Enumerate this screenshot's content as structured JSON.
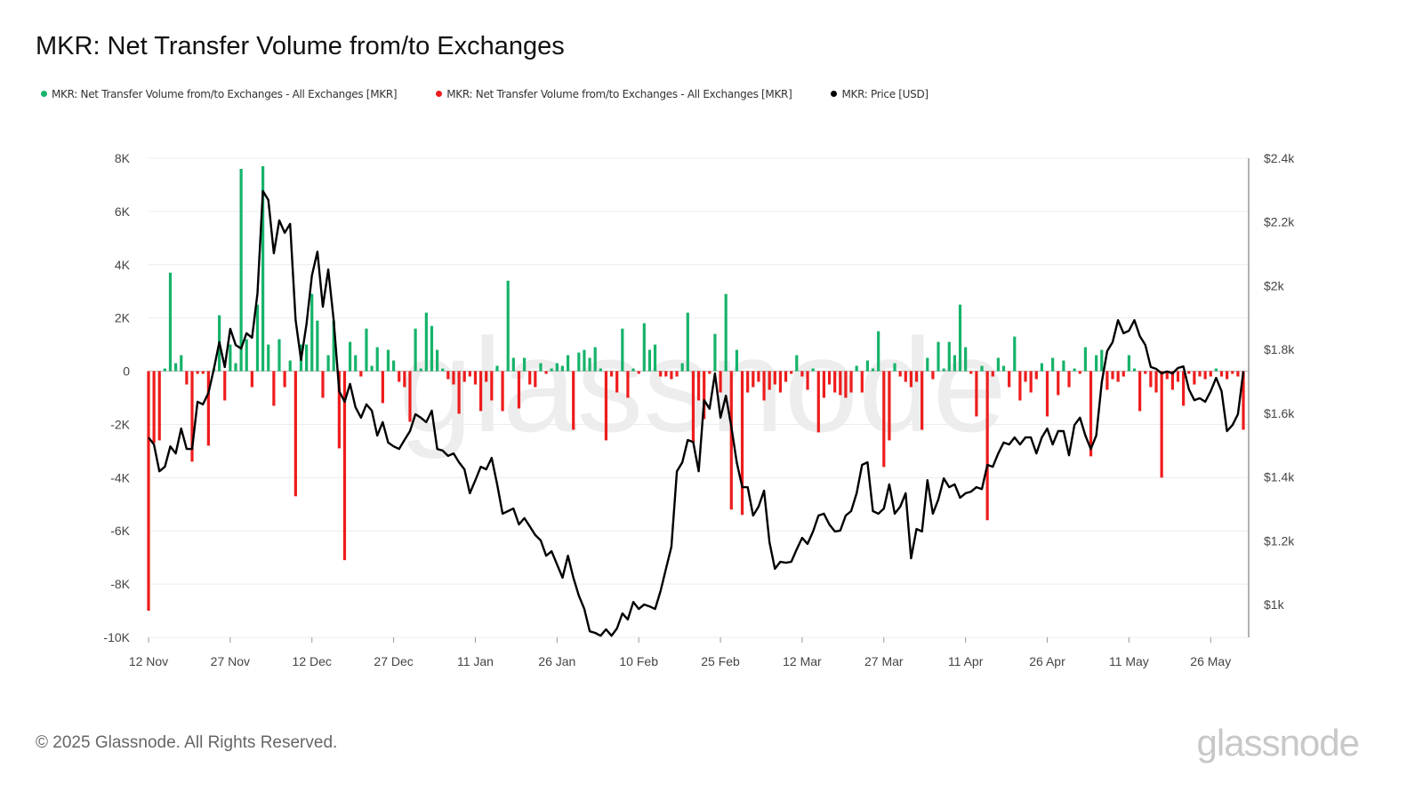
{
  "chart_data": {
    "type": "bar",
    "title": "MKR: Net Transfer Volume from/to Exchanges",
    "legend": [
      {
        "label": "MKR: Net Transfer Volume from/to Exchanges - All Exchanges [MKR]",
        "color": "#16b36b"
      },
      {
        "label": "MKR: Net Transfer Volume from/to Exchanges - All Exchanges [MKR]",
        "color": "#ee1c1c"
      },
      {
        "label": "MKR: Price [USD]",
        "color": "#000000"
      }
    ],
    "legend_position": "top-left",
    "x_ticks": [
      "12 Nov",
      "27 Nov",
      "12 Dec",
      "27 Dec",
      "11 Jan",
      "26 Jan",
      "10 Feb",
      "25 Feb",
      "12 Mar",
      "27 Mar",
      "11 Apr",
      "26 Apr",
      "11 May",
      "26 May"
    ],
    "x_tick_interval_days": 15,
    "y_left": {
      "ticks": [
        "8K",
        "6K",
        "4K",
        "2K",
        "0",
        "-2K",
        "-4K",
        "-6K",
        "-8K",
        "-10K"
      ],
      "range": [
        -10000,
        8000
      ],
      "unit": "MKR"
    },
    "y_right": {
      "ticks": [
        "$2.4k",
        "$2.2k",
        "$2k",
        "$1.8k",
        "$1.6k",
        "$1.4k",
        "$1.2k",
        "$1k"
      ],
      "range": [
        897,
        2400
      ],
      "unit": "USD"
    },
    "grid": true,
    "series": [
      {
        "name": "Net Transfer Volume (K MKR)",
        "type": "bar",
        "values": [
          -9.0,
          -2.7,
          -2.6,
          0.1,
          3.7,
          0.3,
          0.6,
          -0.5,
          -3.4,
          -0.1,
          -0.1,
          -2.8,
          0.1,
          2.1,
          -1.1,
          1.0,
          0.3,
          7.6,
          1.2,
          -0.6,
          2.5,
          7.7,
          1.0,
          -1.3,
          1.2,
          -0.6,
          0.4,
          -4.7,
          1.0,
          1.0,
          2.9,
          1.9,
          -1.0,
          0.6,
          1.9,
          -2.9,
          -7.1,
          1.1,
          0.6,
          -0.2,
          1.6,
          0.2,
          0.9,
          -1.2,
          0.8,
          0.4,
          -0.4,
          -0.6,
          -1.9,
          1.6,
          0.1,
          2.2,
          1.7,
          0.8,
          0.1,
          -0.3,
          -0.5,
          -1.6,
          -0.4,
          -0.2,
          -0.5,
          -1.5,
          -0.4,
          -1.1,
          0.2,
          -1.5,
          3.4,
          0.5,
          -1.4,
          0.5,
          -0.5,
          -0.6,
          0.3,
          -0.1,
          0.1,
          0.3,
          0.2,
          0.6,
          -2.2,
          0.7,
          0.8,
          0.5,
          0.9,
          0.1,
          -2.6,
          -0.2,
          -0.8,
          1.6,
          -1.0,
          0.1,
          -0.1,
          1.8,
          0.8,
          1.0,
          -0.2,
          -0.2,
          -0.3,
          -0.2,
          0.3,
          2.2,
          -2.7,
          -1.1,
          -1.8,
          -0.1,
          1.4,
          -0.8,
          2.9,
          -5.2,
          0.8,
          -5.4,
          -0.8,
          -0.6,
          -0.4,
          -1.1,
          -0.7,
          -0.5,
          -0.8,
          -0.4,
          -0.1,
          0.6,
          -0.2,
          -0.7,
          0.1,
          -2.3,
          -1.0,
          -0.5,
          -0.8,
          -0.9,
          -1.0,
          -0.8,
          0.2,
          -0.8,
          0.4,
          0.1,
          1.5,
          -3.6,
          -2.6,
          0.3,
          -0.2,
          -0.4,
          -0.6,
          -0.4,
          -2.2,
          0.5,
          -0.3,
          1.1,
          0.1,
          1.1,
          0.6,
          2.5,
          0.9,
          -0.1,
          -1.7,
          0.2,
          -5.6,
          -0.2,
          0.5,
          0.2,
          -0.6,
          1.3,
          -1.1,
          -0.4,
          -0.8,
          -0.3,
          0.3,
          -1.7,
          0.5,
          -0.9,
          0.4,
          -0.6,
          0.1,
          -0.1,
          0.9,
          -3.2,
          0.6,
          0.8,
          -0.7,
          -0.3,
          -0.4,
          -0.2,
          0.6,
          0.1,
          -1.5,
          -0.1,
          -0.6,
          -0.8,
          -4.0,
          -0.3,
          -0.7,
          -0.4,
          -1.3,
          -0.1,
          -0.5,
          -0.2,
          -0.3,
          -0.2,
          0.1,
          -0.2,
          -0.3,
          -0.1,
          -0.2,
          -2.2
        ]
      },
      {
        "name": "MKR: Price [USD]",
        "type": "line",
        "values": [
          1524,
          1502,
          1418,
          1432,
          1496,
          1474,
          1552,
          1488,
          1488,
          1636,
          1628,
          1664,
          1739,
          1823,
          1745,
          1865,
          1814,
          1803,
          1851,
          1837,
          1976,
          2297,
          2269,
          2102,
          2205,
          2166,
          2194,
          1892,
          1767,
          1879,
          2032,
          2107,
          1934,
          2051,
          1892,
          1669,
          1636,
          1692,
          1619,
          1586,
          1628,
          1608,
          1530,
          1572,
          1508,
          1496,
          1488,
          1516,
          1544,
          1597,
          1586,
          1572,
          1608,
          1488,
          1483,
          1466,
          1474,
          1446,
          1424,
          1349,
          1390,
          1432,
          1424,
          1460,
          1377,
          1285,
          1293,
          1301,
          1251,
          1271,
          1245,
          1218,
          1201,
          1153,
          1167,
          1126,
          1084,
          1153,
          1084,
          1028,
          986,
          916,
          911,
          902,
          922,
          902,
          925,
          972,
          953,
          1008,
          986,
          1000,
          994,
          986,
          1042,
          1112,
          1181,
          1418,
          1446,
          1516,
          1510,
          1418,
          1641,
          1614,
          1725,
          1586,
          1655,
          1558,
          1446,
          1368,
          1368,
          1279,
          1307,
          1357,
          1195,
          1112,
          1134,
          1131,
          1134,
          1173,
          1209,
          1190,
          1229,
          1279,
          1285,
          1251,
          1229,
          1232,
          1279,
          1293,
          1349,
          1438,
          1446,
          1293,
          1285,
          1301,
          1377,
          1285,
          1307,
          1349,
          1145,
          1237,
          1229,
          1390,
          1285,
          1329,
          1396,
          1368,
          1377,
          1335,
          1349,
          1354,
          1368,
          1362,
          1438,
          1432,
          1474,
          1508,
          1502,
          1524,
          1502,
          1524,
          1524,
          1474,
          1524,
          1552,
          1502,
          1544,
          1544,
          1468,
          1563,
          1586,
          1530,
          1488,
          1530,
          1697,
          1795,
          1823,
          1892,
          1851,
          1859,
          1892,
          1842,
          1814,
          1745,
          1739,
          1725,
          1731,
          1725,
          1742,
          1747,
          1675,
          1641,
          1647,
          1636,
          1669,
          1711,
          1669,
          1544,
          1563,
          1597,
          1731
        ]
      }
    ]
  },
  "footer": {
    "copyright": "© 2025 Glassnode. All Rights Reserved.",
    "brand": "glassnode"
  }
}
